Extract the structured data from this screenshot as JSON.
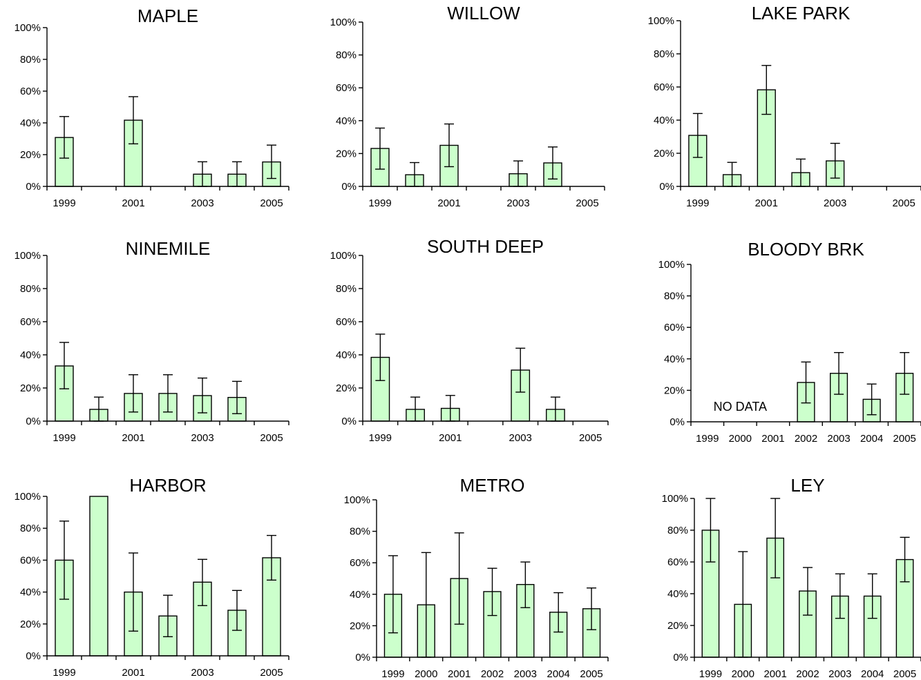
{
  "chart_data": [
    {
      "type": "bar",
      "title": "MAPLE",
      "categories": [
        "1999",
        "2000",
        "2001",
        "2002",
        "2003",
        "2004",
        "2005"
      ],
      "x_tick_labels": [
        "1999",
        "",
        "2001",
        "",
        "2003",
        "",
        "2005"
      ],
      "values": [
        30.8,
        0,
        41.7,
        0,
        7.7,
        7.7,
        15.4
      ],
      "error_low": [
        17.8,
        null,
        26.8,
        null,
        0,
        0,
        5.0
      ],
      "error_high": [
        44.0,
        null,
        56.5,
        null,
        15.5,
        15.5,
        26.0
      ],
      "ylim": [
        0,
        100
      ],
      "y_ticks": [
        "0%",
        "20%",
        "40%",
        "60%",
        "80%",
        "100%"
      ],
      "color": "#ccffcc",
      "grid": false
    },
    {
      "type": "bar",
      "title": "WILLOW",
      "categories": [
        "1999",
        "2000",
        "2001",
        "2002",
        "2003",
        "2004",
        "2005"
      ],
      "x_tick_labels": [
        "1999",
        "",
        "2001",
        "",
        "2003",
        "",
        "2005"
      ],
      "values": [
        23.1,
        7.1,
        25.0,
        0,
        7.7,
        14.3,
        0
      ],
      "error_low": [
        10.5,
        0,
        12.0,
        null,
        0,
        4.5,
        null
      ],
      "error_high": [
        35.5,
        14.5,
        38.0,
        null,
        15.5,
        24.0,
        null
      ],
      "ylim": [
        0,
        100
      ],
      "y_ticks": [
        "0%",
        "20%",
        "40%",
        "60%",
        "80%",
        "100%"
      ],
      "color": "#ccffcc",
      "grid": false
    },
    {
      "type": "bar",
      "title": "LAKE PARK",
      "categories": [
        "1999",
        "2000",
        "2001",
        "2002",
        "2003",
        "2004",
        "2005"
      ],
      "x_tick_labels": [
        "1999",
        "",
        "2001",
        "",
        "2003",
        "",
        "2005"
      ],
      "values": [
        30.8,
        7.1,
        58.3,
        8.3,
        15.4,
        0,
        0
      ],
      "error_low": [
        17.5,
        0,
        43.5,
        0,
        5.0,
        null,
        null
      ],
      "error_high": [
        44.0,
        14.5,
        73.0,
        16.5,
        26.0,
        null,
        null
      ],
      "ylim": [
        0,
        100
      ],
      "y_ticks": [
        "0%",
        "20%",
        "40%",
        "60%",
        "80%",
        "100%"
      ],
      "color": "#ccffcc",
      "grid": false
    },
    {
      "type": "bar",
      "title": "NINEMILE",
      "categories": [
        "1999",
        "2000",
        "2001",
        "2002",
        "2003",
        "2004",
        "2005"
      ],
      "x_tick_labels": [
        "1999",
        "",
        "2001",
        "",
        "2003",
        "",
        "2005"
      ],
      "values": [
        33.3,
        7.1,
        16.7,
        16.7,
        15.4,
        14.3,
        0
      ],
      "error_low": [
        19.5,
        0,
        5.5,
        5.5,
        5.0,
        4.5,
        null
      ],
      "error_high": [
        47.5,
        14.5,
        28.0,
        28.0,
        26.0,
        24.0,
        null
      ],
      "ylim": [
        0,
        100
      ],
      "y_ticks": [
        "0%",
        "20%",
        "40%",
        "60%",
        "80%",
        "100%"
      ],
      "color": "#ccffcc",
      "grid": false
    },
    {
      "type": "bar",
      "title": "SOUTH DEEP",
      "categories": [
        "1999",
        "2000",
        "2001",
        "2002",
        "2003",
        "2004",
        "2005"
      ],
      "x_tick_labels": [
        "1999",
        "",
        "2001",
        "",
        "2003",
        "",
        "2005"
      ],
      "values": [
        38.5,
        7.1,
        7.7,
        0,
        30.8,
        7.1,
        0
      ],
      "error_low": [
        24.5,
        0,
        0,
        null,
        17.5,
        0,
        null
      ],
      "error_high": [
        52.5,
        14.5,
        15.5,
        null,
        44.0,
        14.5,
        null
      ],
      "ylim": [
        0,
        100
      ],
      "y_ticks": [
        "0%",
        "20%",
        "40%",
        "60%",
        "80%",
        "100%"
      ],
      "color": "#ccffcc",
      "grid": false
    },
    {
      "type": "bar",
      "title": "BLOODY BRK",
      "categories": [
        "1999",
        "2000",
        "2001",
        "2002",
        "2003",
        "2004",
        "2005"
      ],
      "x_tick_labels": [
        "1999",
        "2000",
        "2001",
        "2002",
        "2003",
        "2004",
        "2005"
      ],
      "values": [
        null,
        null,
        null,
        25.0,
        30.8,
        14.3,
        30.8
      ],
      "error_low": [
        null,
        null,
        null,
        12.0,
        17.5,
        4.5,
        17.5
      ],
      "error_high": [
        null,
        null,
        null,
        38.0,
        44.0,
        24.0,
        44.0
      ],
      "ylim": [
        0,
        100
      ],
      "y_ticks": [
        "0%",
        "20%",
        "40%",
        "60%",
        "80%",
        "100%"
      ],
      "annotation": "NO DATA",
      "color": "#ccffcc",
      "grid": false
    },
    {
      "type": "bar",
      "title": "HARBOR",
      "categories": [
        "1999",
        "2000",
        "2001",
        "2002",
        "2003",
        "2004",
        "2005"
      ],
      "x_tick_labels": [
        "1999",
        "",
        "2001",
        "",
        "2003",
        "",
        "2005"
      ],
      "values": [
        60.0,
        100.0,
        40.0,
        25.0,
        46.2,
        28.6,
        61.5
      ],
      "error_low": [
        35.5,
        100.0,
        15.5,
        12.0,
        31.5,
        16.0,
        47.5
      ],
      "error_high": [
        84.5,
        100.0,
        64.5,
        38.0,
        60.5,
        41.0,
        75.5
      ],
      "ylim": [
        0,
        100
      ],
      "y_ticks": [
        "0%",
        "20%",
        "40%",
        "60%",
        "80%",
        "100%"
      ],
      "color": "#ccffcc",
      "grid": false
    },
    {
      "type": "bar",
      "title": "METRO",
      "categories": [
        "1999",
        "2000",
        "2001",
        "2002",
        "2003",
        "2004",
        "2005"
      ],
      "x_tick_labels": [
        "1999",
        "2000",
        "2001",
        "2002",
        "2003",
        "2004",
        "2005"
      ],
      "values": [
        40.0,
        33.3,
        50.0,
        41.7,
        46.2,
        28.6,
        30.8
      ],
      "error_low": [
        15.5,
        0,
        21.0,
        26.5,
        31.5,
        16.0,
        17.5
      ],
      "error_high": [
        64.5,
        66.5,
        79.0,
        56.5,
        60.5,
        41.0,
        44.0
      ],
      "ylim": [
        0,
        100
      ],
      "y_ticks": [
        "0%",
        "20%",
        "40%",
        "60%",
        "80%",
        "100%"
      ],
      "color": "#ccffcc",
      "grid": false
    },
    {
      "type": "bar",
      "title": "LEY",
      "categories": [
        "1999",
        "2000",
        "2001",
        "2002",
        "2003",
        "2004",
        "2005"
      ],
      "x_tick_labels": [
        "1999",
        "2000",
        "2001",
        "2002",
        "2003",
        "2004",
        "2005"
      ],
      "values": [
        80.0,
        33.3,
        75.0,
        41.7,
        38.5,
        38.5,
        61.5
      ],
      "error_low": [
        60.0,
        0,
        50.0,
        26.5,
        24.5,
        24.5,
        47.5
      ],
      "error_high": [
        100.0,
        66.5,
        100.0,
        56.5,
        52.5,
        52.5,
        75.5
      ],
      "ylim": [
        0,
        100
      ],
      "y_ticks": [
        "0%",
        "20%",
        "40%",
        "60%",
        "80%",
        "100%"
      ],
      "color": "#ccffcc",
      "grid": false
    }
  ]
}
